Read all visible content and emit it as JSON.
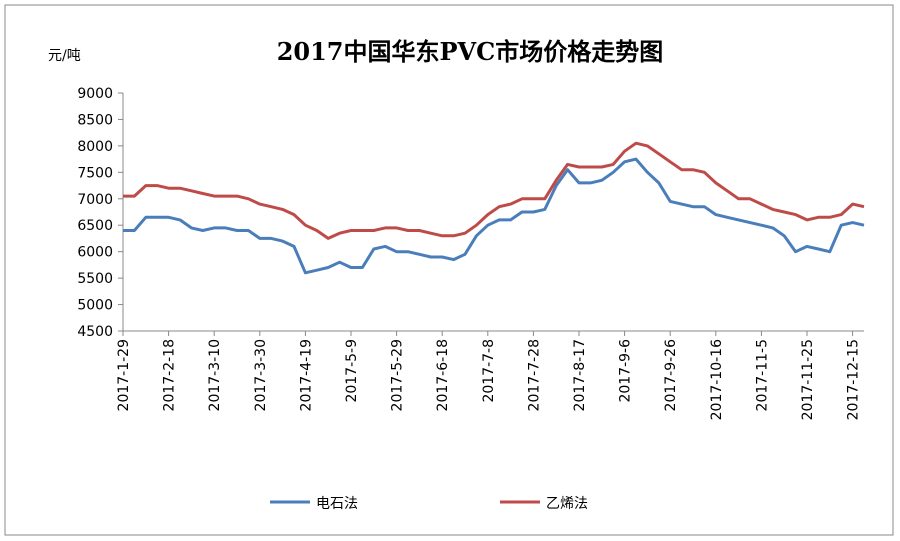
{
  "chart_data": {
    "type": "line",
    "title": "2017中国华东PVC市场价格走势图",
    "y_label": "元/吨",
    "categories": [
      "2017-1-29",
      null,
      null,
      null,
      "2017-2-18",
      null,
      null,
      null,
      "2017-3-10",
      null,
      null,
      null,
      "2017-3-30",
      null,
      null,
      null,
      "2017-4-19",
      null,
      null,
      null,
      "2017-5-9",
      null,
      null,
      null,
      "2017-5-29",
      null,
      null,
      null,
      "2017-6-18",
      null,
      null,
      null,
      "2017-7-8",
      null,
      null,
      null,
      "2017-7-28",
      null,
      null,
      null,
      "2017-8-17",
      null,
      null,
      null,
      "2017-9-6",
      null,
      null,
      null,
      "2017-9-26",
      null,
      null,
      null,
      "2017-10-16",
      null,
      null,
      null,
      "2017-11-5",
      null,
      null,
      null,
      "2017-11-25",
      null,
      null,
      null,
      "2017-12-15",
      null
    ],
    "series": [
      {
        "name": "电石法",
        "color": "#4a7ebb",
        "values": [
          6400,
          6400,
          6650,
          6650,
          6650,
          6600,
          6450,
          6400,
          6450,
          6450,
          6400,
          6400,
          6250,
          6250,
          6200,
          6100,
          5600,
          5650,
          5700,
          5800,
          5700,
          5700,
          6050,
          6100,
          6000,
          6000,
          5950,
          5900,
          5900,
          5850,
          5950,
          6300,
          6500,
          6600,
          6600,
          6750,
          6750,
          6800,
          7250,
          7550,
          7300,
          7300,
          7350,
          7500,
          7700,
          7750,
          7500,
          7300,
          6950,
          6900,
          6850,
          6850,
          6700,
          6650,
          6600,
          6550,
          6500,
          6450,
          6300,
          6000,
          6100,
          6050,
          6000,
          6500,
          6550,
          6500
        ]
      },
      {
        "name": "乙烯法",
        "color": "#be4b48",
        "values": [
          7050,
          7050,
          7250,
          7250,
          7200,
          7200,
          7150,
          7100,
          7050,
          7050,
          7050,
          7000,
          6900,
          6850,
          6800,
          6700,
          6500,
          6400,
          6250,
          6350,
          6400,
          6400,
          6400,
          6450,
          6450,
          6400,
          6400,
          6350,
          6300,
          6300,
          6350,
          6500,
          6700,
          6850,
          6900,
          7000,
          7000,
          7000,
          7350,
          7650,
          7600,
          7600,
          7600,
          7650,
          7900,
          8050,
          8000,
          7850,
          7700,
          7550,
          7550,
          7500,
          7300,
          7150,
          7000,
          7000,
          6900,
          6800,
          6750,
          6700,
          6600,
          6650,
          6650,
          6700,
          6900,
          6850
        ]
      }
    ],
    "ylim": [
      4500,
      9000
    ],
    "yticks": [
      4500,
      5000,
      5500,
      6000,
      6500,
      7000,
      7500,
      8000,
      8500,
      9000
    ],
    "grid": false
  }
}
